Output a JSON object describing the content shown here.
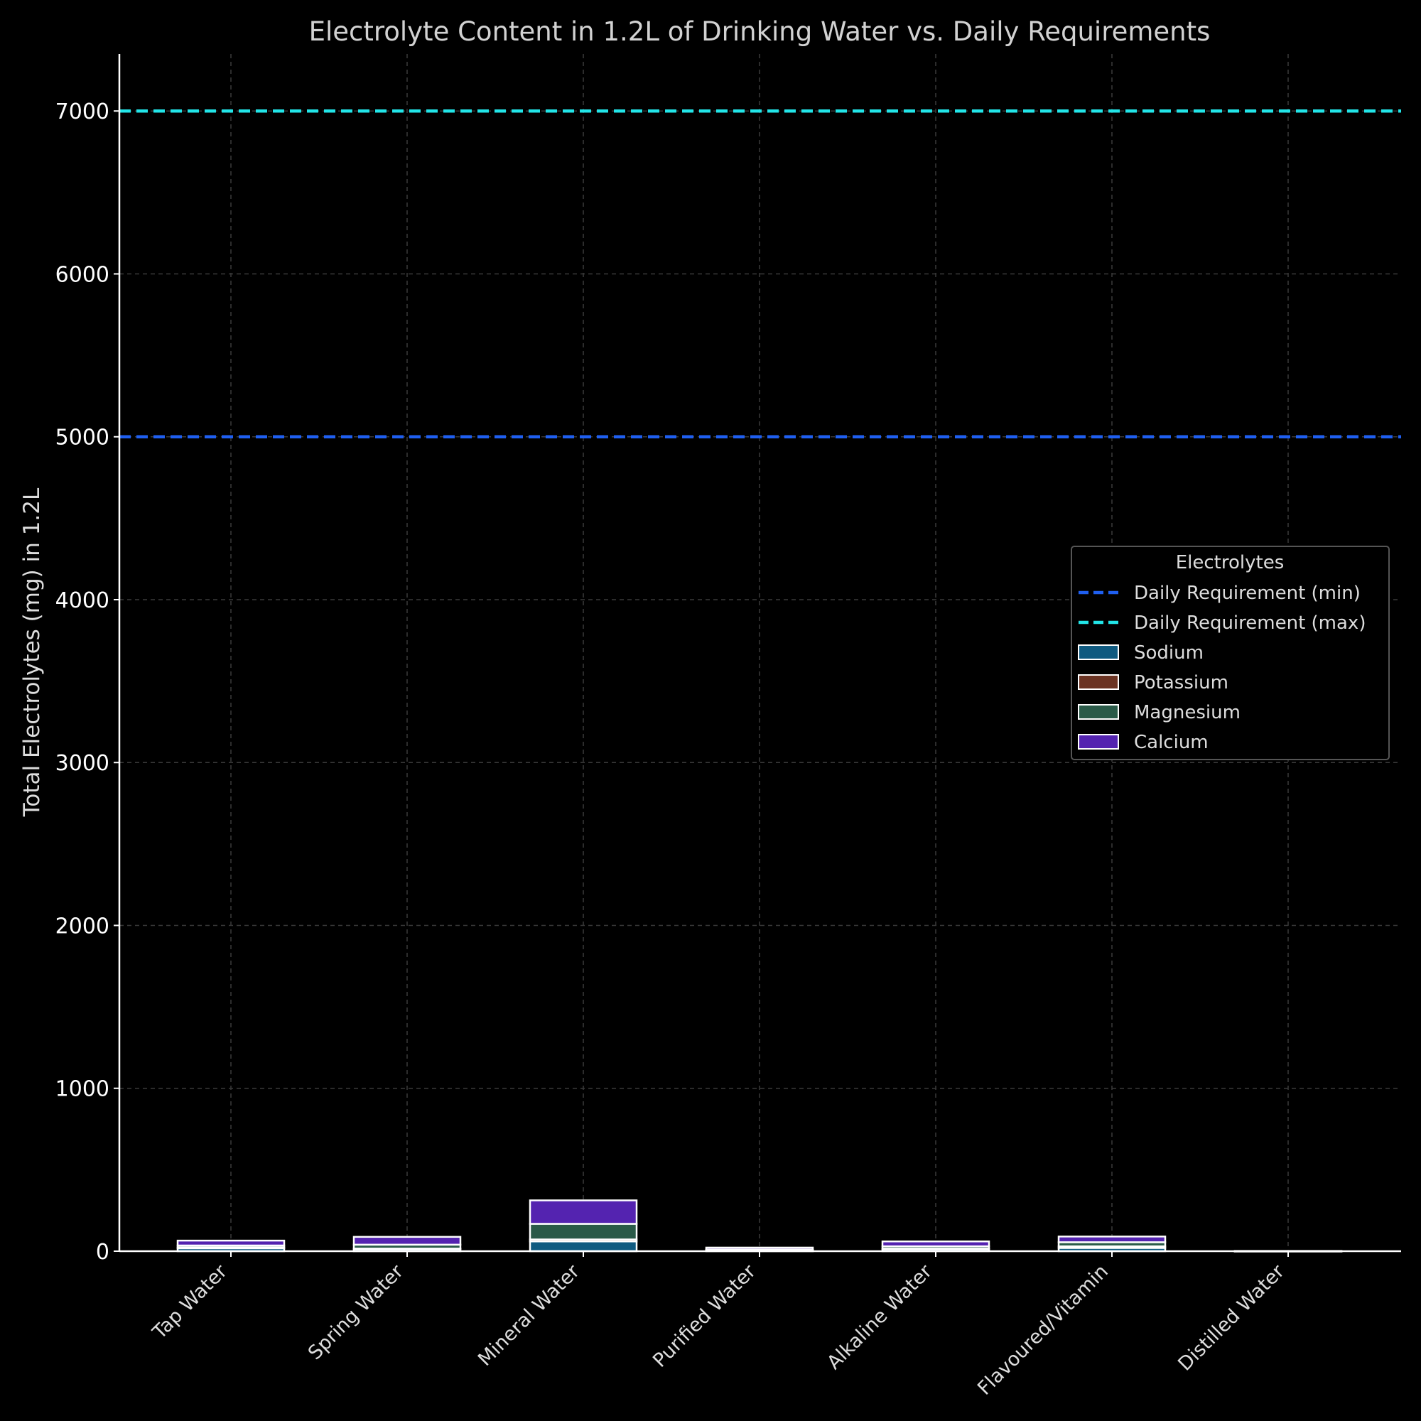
{
  "chart_data": {
    "type": "bar",
    "stacked": true,
    "title": "Electrolyte Content in 1.2L of Drinking Water vs. Daily Requirements",
    "xlabel": "",
    "ylabel": "Total Electrolytes (mg) in 1.2L",
    "ylim": [
      0,
      7350
    ],
    "yticks": [
      0,
      1000,
      2000,
      3000,
      4000,
      5000,
      6000,
      7000
    ],
    "grid": true,
    "categories": [
      "Tap Water",
      "Spring Water",
      "Mineral Water",
      "Purified Water",
      "Alkaline Water",
      "Flavoured/Vitamin",
      "Distilled Water"
    ],
    "series": [
      {
        "name": "Sodium",
        "color": "#0f5a80",
        "values": [
          18,
          12,
          60,
          6,
          12,
          20,
          0.5
        ]
      },
      {
        "name": "Potassium",
        "color": "#6b3322",
        "values": [
          5,
          4,
          12,
          1,
          4,
          10,
          0.2
        ]
      },
      {
        "name": "Magnesium",
        "color": "#2a5a48",
        "values": [
          12,
          24,
          96,
          3,
          14,
          25,
          0.2
        ]
      },
      {
        "name": "Calcium",
        "color": "#5423b0",
        "values": [
          30,
          48,
          144,
          12,
          30,
          35,
          0.5
        ]
      }
    ],
    "reference_lines": [
      {
        "name": "Daily Requirement (min)",
        "value": 5000,
        "color": "#1f5ff0"
      },
      {
        "name": "Daily Requirement (max)",
        "value": 7000,
        "color": "#22e5e8"
      }
    ],
    "legend": {
      "title": "Electrolytes",
      "placement": "right"
    }
  }
}
